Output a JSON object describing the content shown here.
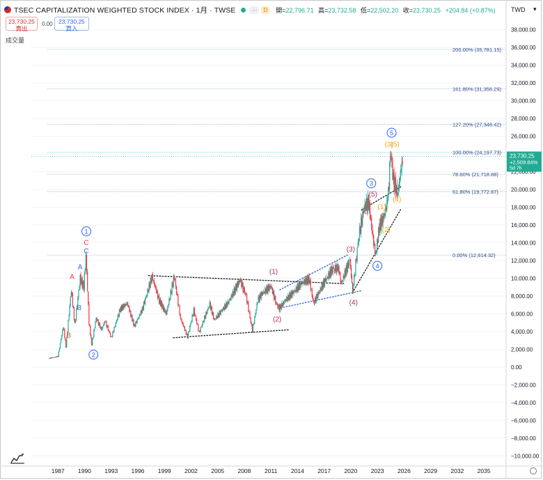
{
  "header": {
    "symbol_title": "TSEC CAPITALIZATION WEIGHTED STOCK INDEX · 1月 · TWSE",
    "badge_ellipsis": "···",
    "badge_d": "D",
    "ohlc": [
      {
        "label": "開=",
        "value": "22,796.71"
      },
      {
        "label": "高=",
        "value": "23,732.58"
      },
      {
        "label": "低=",
        "value": "22,502.20"
      },
      {
        "label": "收=",
        "value": "23,730.25"
      }
    ],
    "change": "+204.84 (+0.87%)"
  },
  "trade": {
    "sell_price": "23,730.25",
    "sell_label": "賣出",
    "spread": "0.00",
    "buy_price": "23,730.25",
    "buy_label": "買入"
  },
  "volume_label": "成交量",
  "currency": "TWD",
  "colors": {
    "up": "#22ab94",
    "down": "#f23645",
    "blue": "#2962ff",
    "wave_red": "#b22c5e",
    "wave_orange": "#f2a41a",
    "fib_line": "#9fb4d6"
  },
  "chart_data": {
    "type": "line",
    "y_axis": {
      "min": -11000,
      "max": 39000,
      "step": 2000,
      "ticks": [
        "38,000.00",
        "36,000.00",
        "34,000.00",
        "32,000.00",
        "30,000.00",
        "28,000.00",
        "26,000.00",
        "24,000.00",
        "22,000.00",
        "20,000.00",
        "18,000.00",
        "16,000.00",
        "14,000.00",
        "12,000.00",
        "10,000.00",
        "8,000.00",
        "6,000.00",
        "4,000.00",
        "2,000.00",
        "0.00",
        "−2,000.00",
        "−4,000.00",
        "−6,000.00",
        "−8,000.00",
        "−10,000.00"
      ]
    },
    "x_axis": {
      "min": 1984.0,
      "max": 2037.5,
      "ticks": [
        "1987",
        "1990",
        "1993",
        "1996",
        "1999",
        "2002",
        "2005",
        "2008",
        "2011",
        "2014",
        "2017",
        "2020",
        "2023",
        "2026",
        "2029",
        "2032",
        "2035"
      ]
    },
    "series": [
      {
        "values": [
          [
            1986.0,
            980
          ],
          [
            1987.0,
            1200
          ],
          [
            1987.6,
            4600
          ],
          [
            1987.9,
            2300
          ],
          [
            1988.5,
            8700
          ],
          [
            1988.9,
            4800
          ],
          [
            1989.5,
            10000
          ],
          [
            1989.9,
            9000
          ],
          [
            1990.15,
            12500
          ],
          [
            1990.5,
            5000
          ],
          [
            1990.8,
            2560
          ],
          [
            1991.3,
            5500
          ],
          [
            1991.9,
            4200
          ],
          [
            1992.3,
            5200
          ],
          [
            1993.0,
            3300
          ],
          [
            1994.0,
            6500
          ],
          [
            1994.8,
            7200
          ],
          [
            1995.6,
            4600
          ],
          [
            1996.5,
            6500
          ],
          [
            1997.6,
            10200
          ],
          [
            1998.4,
            7500
          ],
          [
            1999.2,
            6000
          ],
          [
            2000.1,
            10200
          ],
          [
            2000.8,
            5500
          ],
          [
            2001.6,
            3400
          ],
          [
            2002.3,
            6400
          ],
          [
            2002.9,
            3900
          ],
          [
            2004.1,
            7100
          ],
          [
            2004.6,
            5300
          ],
          [
            2006.2,
            7300
          ],
          [
            2007.5,
            9800
          ],
          [
            2008.2,
            8000
          ],
          [
            2008.9,
            4100
          ],
          [
            2009.5,
            7500
          ],
          [
            2010.0,
            8300
          ],
          [
            2011.0,
            9100
          ],
          [
            2011.6,
            7100
          ],
          [
            2011.95,
            6600
          ],
          [
            2012.6,
            7500
          ],
          [
            2013.5,
            8400
          ],
          [
            2014.5,
            9500
          ],
          [
            2015.3,
            9900
          ],
          [
            2015.8,
            7200
          ],
          [
            2016.9,
            9400
          ],
          [
            2017.9,
            11000
          ],
          [
            2018.6,
            11200
          ],
          [
            2018.9,
            9400
          ],
          [
            2019.9,
            12100
          ],
          [
            2020.2,
            8500
          ],
          [
            2020.9,
            14800
          ],
          [
            2021.5,
            18000
          ],
          [
            2022.0,
            18600
          ],
          [
            2022.5,
            14500
          ],
          [
            2022.8,
            12600
          ],
          [
            2023.2,
            15800
          ],
          [
            2023.7,
            16900
          ],
          [
            2024.0,
            18000
          ],
          [
            2024.3,
            20500
          ],
          [
            2024.45,
            24400
          ],
          [
            2024.8,
            21000
          ],
          [
            2025.3,
            19500
          ],
          [
            2025.6,
            22000
          ],
          [
            2025.9,
            23730
          ]
        ]
      }
    ],
    "fib_levels": [
      {
        "label": "200.00% (35,781.15)",
        "value": 35781.15
      },
      {
        "label": "161.80% (31,356.29)",
        "value": 31356.29
      },
      {
        "label": "127.20% (27,348.42)",
        "value": 27348.42
      },
      {
        "label": "100.00% (24,197.73)",
        "value": 24197.73
      },
      {
        "label": "78.60% (21,718.88)",
        "value": 21718.88
      },
      {
        "label": "61.80% (19,772.87)",
        "value": 19772.87
      },
      {
        "label": "0.00% (12,614.32)",
        "value": 12614.32
      }
    ],
    "price_tag": {
      "value": 23730.25,
      "label": "23,730.25",
      "change": "+2,509.84%",
      "time": "5d 7h"
    },
    "wave_labels": [
      {
        "text": "1",
        "kind": "circle",
        "color": "blue",
        "x": 1990.2,
        "y": 15300
      },
      {
        "text": "C",
        "kind": "plain",
        "color": "red",
        "x": 1990.2,
        "y": 14050
      },
      {
        "text": "C",
        "kind": "plain",
        "color": "blue",
        "x": 1990.2,
        "y": 13100
      },
      {
        "text": "A",
        "kind": "plain",
        "color": "red",
        "x": 1988.6,
        "y": 10200
      },
      {
        "text": "A",
        "kind": "plain",
        "color": "blue",
        "x": 1989.5,
        "y": 11300
      },
      {
        "text": "B",
        "kind": "plain",
        "color": "blue",
        "x": 1989.4,
        "y": 6700
      },
      {
        "text": "B",
        "kind": "plain",
        "color": "red",
        "x": 1988.2,
        "y": 3600
      },
      {
        "text": "2",
        "kind": "circle",
        "color": "blue",
        "x": 1991.0,
        "y": 1400
      },
      {
        "text": "(1)",
        "kind": "plain",
        "color": "wave_red",
        "x": 2011.3,
        "y": 10800
      },
      {
        "text": "(2)",
        "kind": "plain",
        "color": "wave_red",
        "x": 2011.7,
        "y": 5400
      },
      {
        "text": "(3)",
        "kind": "plain",
        "color": "wave_red",
        "x": 2020.0,
        "y": 13300
      },
      {
        "text": "(4)",
        "kind": "plain",
        "color": "wave_red",
        "x": 2020.3,
        "y": 7300
      },
      {
        "text": "3",
        "kind": "circle",
        "color": "blue",
        "x": 2022.3,
        "y": 20700
      },
      {
        "text": "(5)",
        "kind": "plain",
        "color": "wave_red",
        "x": 2022.5,
        "y": 19500
      },
      {
        "text": "4",
        "kind": "circle",
        "color": "blue",
        "x": 2023.0,
        "y": 11400
      },
      {
        "text": "(1)",
        "kind": "plain",
        "color": "wave_orange",
        "x": 2023.5,
        "y": 18100
      },
      {
        "text": "(2)",
        "kind": "plain",
        "color": "wave_orange",
        "x": 2024.0,
        "y": 15500
      },
      {
        "text": "(4)",
        "kind": "plain",
        "color": "wave_orange",
        "x": 2025.2,
        "y": 18900
      },
      {
        "text": "(3)",
        "kind": "plain",
        "color": "wave_orange",
        "x": 2024.3,
        "y": 25100
      },
      {
        "text": "(5)",
        "kind": "plain",
        "color": "wave_orange",
        "x": 2025.0,
        "y": 25100
      },
      {
        "text": "5",
        "kind": "circle",
        "color": "blue",
        "x": 2024.6,
        "y": 26400
      }
    ],
    "trendlines": [
      {
        "style": "dotted",
        "color": "black",
        "from": [
          1997.2,
          10300
        ],
        "to": [
          2019.2,
          9400
        ]
      },
      {
        "style": "dotted",
        "color": "black",
        "from": [
          2000.0,
          3300
        ],
        "to": [
          2013.0,
          4200
        ]
      },
      {
        "style": "dotted",
        "color": "blue",
        "from": [
          2011.8,
          6600
        ],
        "to": [
          2021.2,
          8600
        ]
      },
      {
        "style": "dotted",
        "color": "blue",
        "from": [
          2012.0,
          8700
        ],
        "to": [
          2019.8,
          12700
        ]
      },
      {
        "style": "dotted",
        "color": "black",
        "from": [
          2020.2,
          8400
        ],
        "to": [
          2025.7,
          17900
        ]
      },
      {
        "style": "dotted",
        "color": "black",
        "from": [
          2021.2,
          17700
        ],
        "to": [
          2025.8,
          20400
        ]
      }
    ]
  }
}
